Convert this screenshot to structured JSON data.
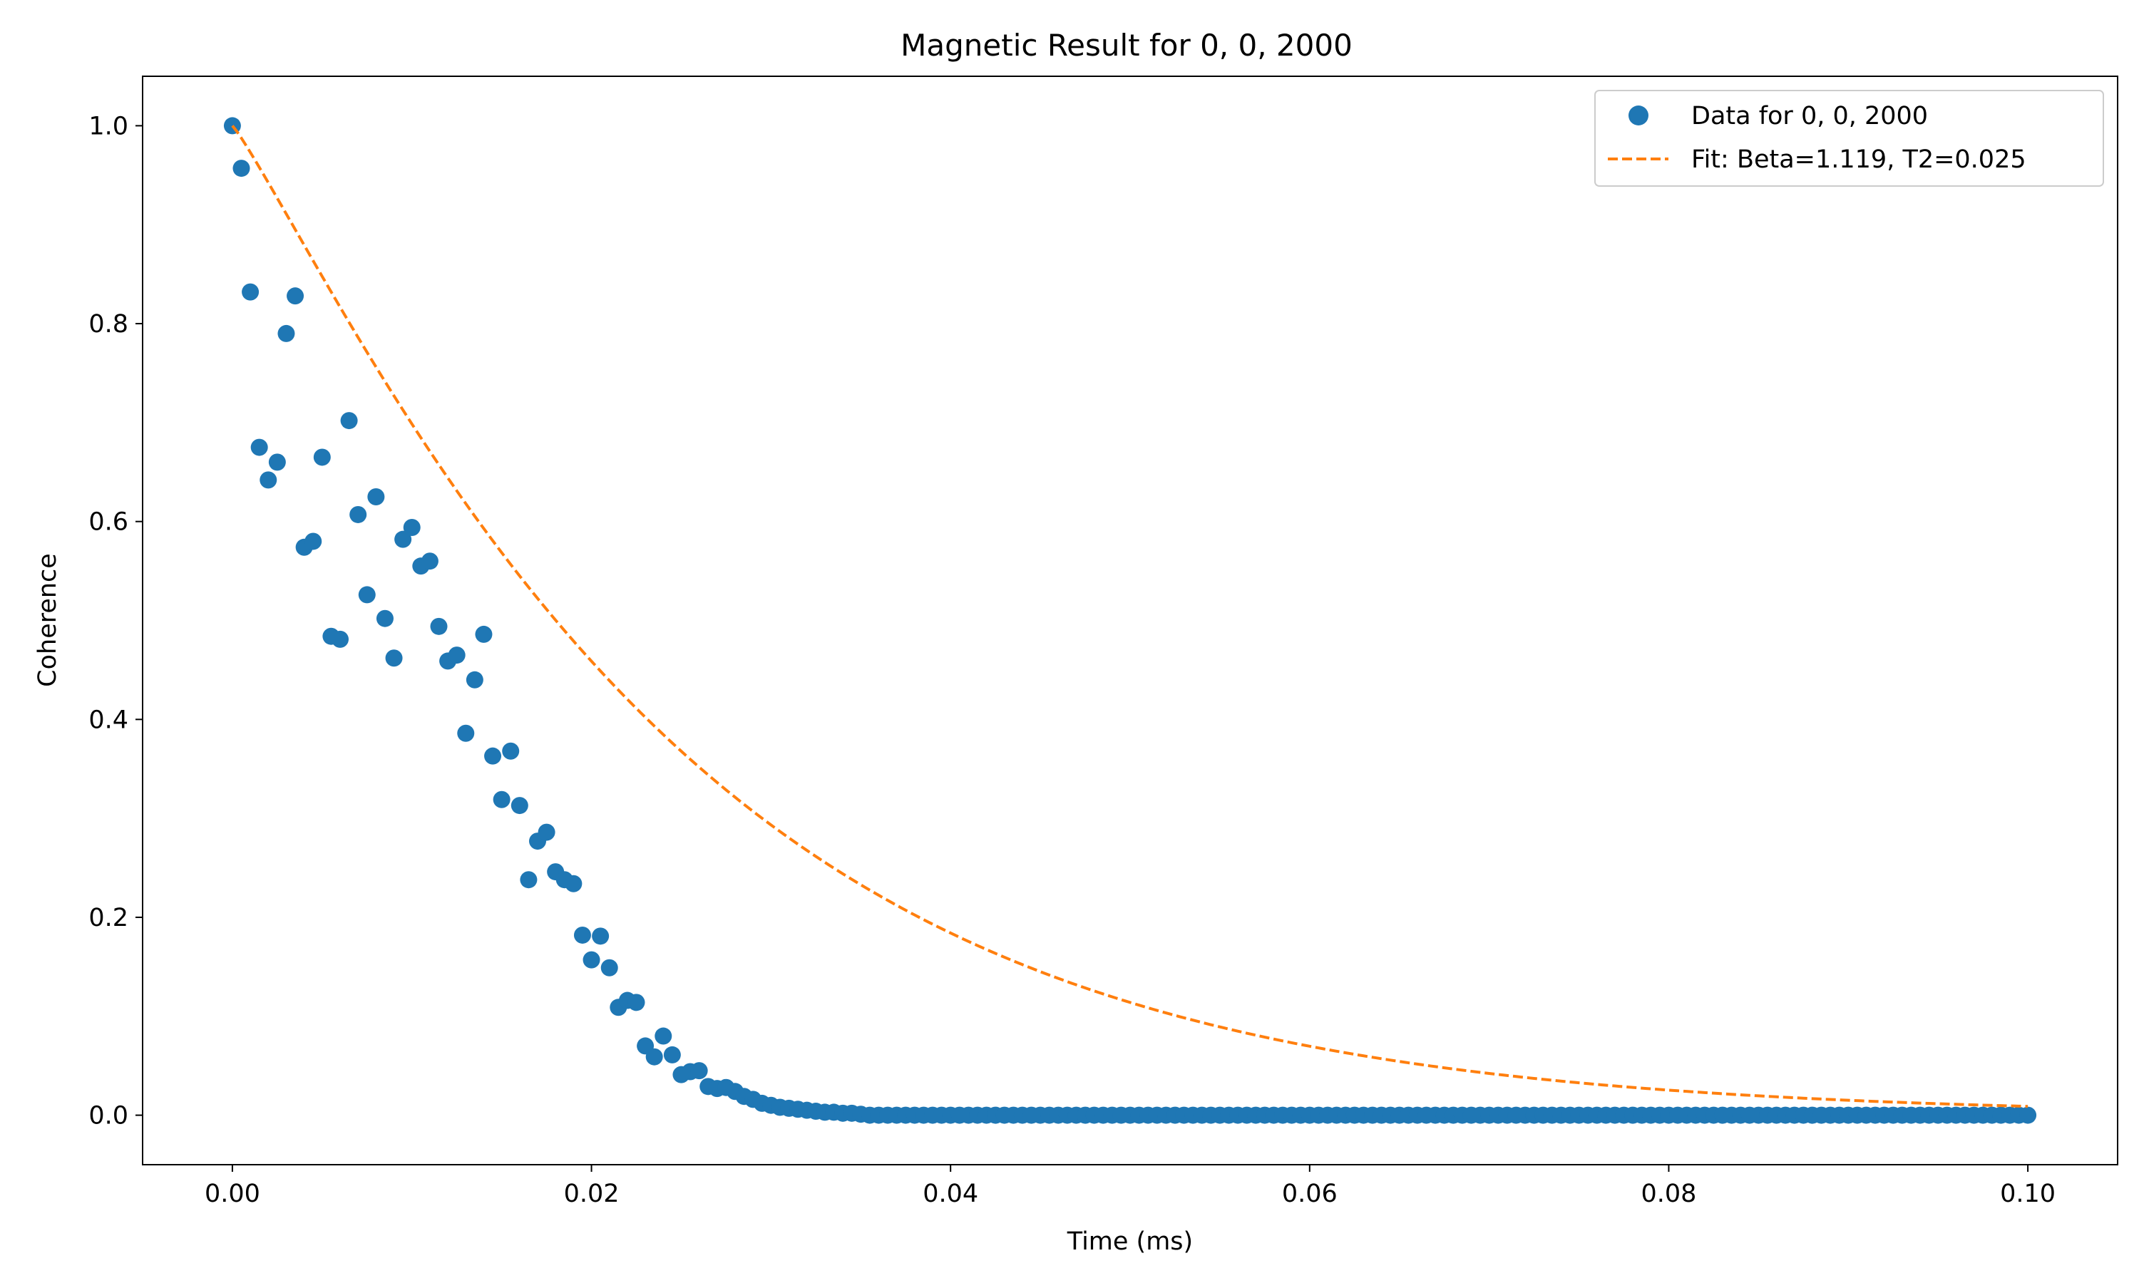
{
  "chart_data": {
    "type": "scatter",
    "title": "Magnetic Result for 0, 0, 2000",
    "xlabel": "Time (ms)",
    "ylabel": "Coherence",
    "xlim": [
      -0.005,
      0.105
    ],
    "ylim": [
      -0.05,
      1.05
    ],
    "xticks": [
      0.0,
      0.02,
      0.04,
      0.06,
      0.08,
      0.1
    ],
    "xtick_labels": [
      "0.00",
      "0.02",
      "0.04",
      "0.06",
      "0.08",
      "0.10"
    ],
    "yticks": [
      0.0,
      0.2,
      0.4,
      0.6,
      0.8,
      1.0
    ],
    "ytick_labels": [
      "0.0",
      "0.2",
      "0.4",
      "0.6",
      "0.8",
      "1.0"
    ],
    "grid": false,
    "legend_position": "top-right",
    "series": [
      {
        "name": "Data for 0, 0, 2000",
        "kind": "scatter",
        "color": "#1f77b4",
        "x": [
          0.0,
          0.0005,
          0.001,
          0.0015,
          0.002,
          0.0025,
          0.003,
          0.0035,
          0.004,
          0.0045,
          0.005,
          0.0055,
          0.006,
          0.0065,
          0.007,
          0.0075,
          0.008,
          0.0085,
          0.009,
          0.0095,
          0.01,
          0.0105,
          0.011,
          0.0115,
          0.012,
          0.0125,
          0.013,
          0.0135,
          0.014,
          0.0145,
          0.015,
          0.0155,
          0.016,
          0.0165,
          0.017,
          0.0175,
          0.018,
          0.0185,
          0.019,
          0.0195,
          0.02,
          0.0205,
          0.021,
          0.0215,
          0.022,
          0.0225,
          0.023,
          0.0235,
          0.024,
          0.0245,
          0.025,
          0.0255,
          0.026,
          0.0265,
          0.027,
          0.0275,
          0.028,
          0.0285,
          0.029,
          0.0295,
          0.03,
          0.0305,
          0.031,
          0.0315,
          0.032,
          0.0325,
          0.033,
          0.0335,
          0.034,
          0.0345,
          0.035
        ],
        "y": [
          1.0,
          0.957,
          0.832,
          0.675,
          0.642,
          0.66,
          0.79,
          0.828,
          0.574,
          0.58,
          0.665,
          0.484,
          0.481,
          0.702,
          0.607,
          0.526,
          0.625,
          0.502,
          0.462,
          0.582,
          0.594,
          0.555,
          0.56,
          0.494,
          0.459,
          0.465,
          0.386,
          0.44,
          0.486,
          0.363,
          0.319,
          0.368,
          0.313,
          0.238,
          0.277,
          0.286,
          0.246,
          0.238,
          0.234,
          0.182,
          0.157,
          0.181,
          0.149,
          0.109,
          0.116,
          0.114,
          0.07,
          0.059,
          0.08,
          0.061,
          0.041,
          0.044,
          0.045,
          0.029,
          0.027,
          0.028,
          0.024,
          0.019,
          0.016,
          0.012,
          0.01,
          0.008,
          0.007,
          0.006,
          0.005,
          0.004,
          0.003,
          0.003,
          0.002,
          0.002,
          0.001
        ],
        "tail_x_start": 0.0355,
        "tail_x_end": 0.1,
        "tail_step": 0.0005,
        "tail_y": 0.0
      },
      {
        "name": "Fit: Beta=1.119, T2=0.025",
        "kind": "line",
        "style": "dashed",
        "color": "#ff7f0e",
        "model": "exp(-(t/T2)^Beta)",
        "Beta": 1.119,
        "T2": 0.025,
        "x_range": [
          0.0,
          0.1
        ]
      }
    ]
  }
}
